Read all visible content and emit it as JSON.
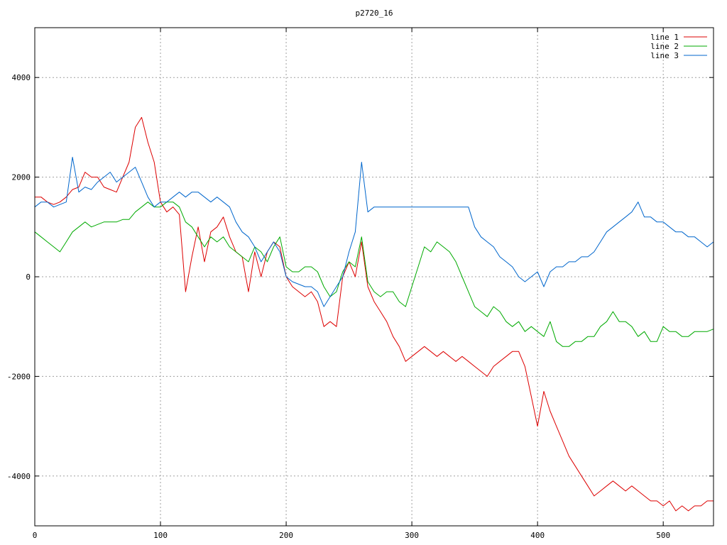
{
  "chart_data": {
    "type": "line",
    "title": "p2720_16",
    "xlabel": "",
    "ylabel": "",
    "xlim": [
      0,
      540
    ],
    "ylim": [
      -5000,
      5000
    ],
    "x_ticks": [
      0,
      100,
      200,
      300,
      400,
      500
    ],
    "y_ticks": [
      -4000,
      -2000,
      0,
      2000,
      4000
    ],
    "y_tick_labels": [
      "-4000",
      "-2000",
      "0",
      "2000",
      "4000"
    ],
    "grid": true,
    "legend_position": "top-right",
    "x": [
      0,
      5,
      10,
      15,
      20,
      25,
      30,
      35,
      40,
      45,
      50,
      55,
      60,
      65,
      70,
      75,
      80,
      85,
      90,
      95,
      100,
      105,
      110,
      115,
      120,
      125,
      130,
      135,
      140,
      145,
      150,
      155,
      160,
      165,
      170,
      175,
      180,
      185,
      190,
      195,
      200,
      205,
      210,
      215,
      220,
      225,
      230,
      235,
      240,
      245,
      250,
      255,
      260,
      265,
      270,
      275,
      280,
      285,
      290,
      295,
      300,
      305,
      310,
      315,
      320,
      325,
      330,
      335,
      340,
      345,
      350,
      355,
      360,
      365,
      370,
      375,
      380,
      385,
      390,
      395,
      400,
      405,
      410,
      415,
      420,
      425,
      430,
      435,
      440,
      445,
      450,
      455,
      460,
      465,
      470,
      475,
      480,
      485,
      490,
      495,
      500,
      505,
      510,
      515,
      520,
      525,
      530,
      535,
      540
    ],
    "series": [
      {
        "name": "line 1",
        "color": "#dd0000",
        "values": [
          1600,
          1600,
          1500,
          1450,
          1500,
          1600,
          1750,
          1800,
          2100,
          2000,
          2000,
          1800,
          1750,
          1700,
          2000,
          2300,
          3000,
          3200,
          2700,
          2300,
          1500,
          1300,
          1400,
          1250,
          -300,
          400,
          1000,
          300,
          900,
          1000,
          1200,
          800,
          500,
          400,
          -300,
          500,
          0,
          500,
          700,
          600,
          0,
          -200,
          -300,
          -400,
          -300,
          -500,
          -1000,
          -900,
          -1000,
          0,
          300,
          0,
          700,
          -200,
          -500,
          -700,
          -900,
          -1200,
          -1400,
          -1700,
          -1600,
          -1500,
          -1400,
          -1500,
          -1600,
          -1500,
          -1600,
          -1700,
          -1600,
          -1700,
          -1800,
          -1900,
          -2000,
          -1800,
          -1700,
          -1600,
          -1500,
          -1500,
          -1800,
          -2400,
          -3000,
          -2300,
          -2700,
          -3000,
          -3300,
          -3600,
          -3800,
          -4000,
          -4200,
          -4400,
          -4300,
          -4200,
          -4100,
          -4200,
          -4300,
          -4200,
          -4300,
          -4400,
          -4500,
          -4500,
          -4600,
          -4500,
          -4700,
          -4600,
          -4700,
          -4600,
          -4600,
          -4500,
          -4500
        ],
        "label_positions_note": ""
      },
      {
        "name": "line 2",
        "color": "#00aa00",
        "values": [
          900,
          800,
          700,
          600,
          500,
          700,
          900,
          1000,
          1100,
          1000,
          1050,
          1100,
          1100,
          1100,
          1150,
          1150,
          1300,
          1400,
          1500,
          1400,
          1400,
          1500,
          1500,
          1400,
          1100,
          1000,
          800,
          600,
          800,
          700,
          800,
          600,
          500,
          400,
          300,
          600,
          500,
          300,
          600,
          800,
          200,
          100,
          100,
          200,
          200,
          100,
          -200,
          -400,
          -300,
          100,
          300,
          200,
          800,
          -100,
          -300,
          -400,
          -300,
          -300,
          -500,
          -600,
          -200,
          200,
          600,
          500,
          700,
          600,
          500,
          300,
          0,
          -300,
          -600,
          -700,
          -800,
          -600,
          -700,
          -900,
          -1000,
          -900,
          -1100,
          -1000,
          -1100,
          -1200,
          -900,
          -1300,
          -1400,
          -1400,
          -1300,
          -1300,
          -1200,
          -1200,
          -1000,
          -900,
          -700,
          -900,
          -900,
          -1000,
          -1200,
          -1100,
          -1300,
          -1300,
          -1000,
          -1100,
          -1100,
          -1200,
          -1200,
          -1100,
          -1100,
          -1100,
          -1050
        ]
      },
      {
        "name": "line 3",
        "color": "#0066cc",
        "values": [
          1400,
          1500,
          1500,
          1400,
          1450,
          1500,
          2400,
          1700,
          1800,
          1750,
          1900,
          2000,
          2100,
          1900,
          2000,
          2100,
          2200,
          1900,
          1600,
          1400,
          1500,
          1500,
          1600,
          1700,
          1600,
          1700,
          1700,
          1600,
          1500,
          1600,
          1500,
          1400,
          1100,
          900,
          800,
          600,
          300,
          500,
          700,
          500,
          0,
          -100,
          -150,
          -200,
          -200,
          -300,
          -600,
          -400,
          -200,
          0,
          500,
          900,
          2300,
          1300,
          1400,
          1400,
          1400,
          1400,
          1400,
          1400,
          1400,
          1400,
          1400,
          1400,
          1400,
          1400,
          1400,
          1400,
          1400,
          1400,
          1000,
          800,
          700,
          600,
          400,
          300,
          200,
          0,
          -100,
          0,
          100,
          -200,
          100,
          200,
          200,
          300,
          300,
          400,
          400,
          500,
          700,
          900,
          1000,
          1100,
          1200,
          1300,
          1500,
          1200,
          1200,
          1100,
          1100,
          1000,
          900,
          900,
          800,
          800,
          700,
          600,
          700
        ]
      }
    ]
  }
}
